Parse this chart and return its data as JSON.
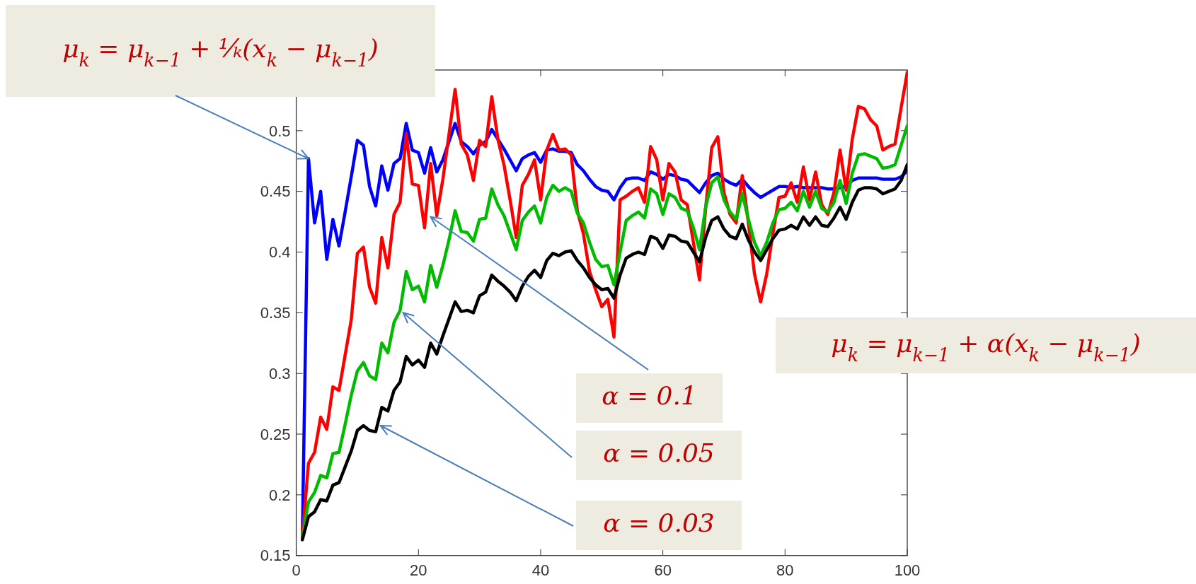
{
  "chart_data": {
    "type": "line",
    "x": [
      1,
      2,
      3,
      4,
      5,
      6,
      7,
      8,
      9,
      10,
      11,
      12,
      13,
      14,
      15,
      16,
      17,
      18,
      19,
      20,
      21,
      22,
      23,
      24,
      25,
      26,
      27,
      28,
      29,
      30,
      31,
      32,
      33,
      34,
      35,
      36,
      37,
      38,
      39,
      40,
      41,
      42,
      43,
      44,
      45,
      46,
      47,
      48,
      49,
      50,
      51,
      52,
      53,
      54,
      55,
      56,
      57,
      58,
      59,
      60,
      61,
      62,
      63,
      64,
      65,
      66,
      67,
      68,
      69,
      70,
      71,
      72,
      73,
      74,
      75,
      76,
      77,
      78,
      79,
      80,
      81,
      82,
      83,
      84,
      85,
      86,
      87,
      88,
      89,
      90,
      91,
      92,
      93,
      94,
      95,
      96,
      97,
      98,
      99,
      100
    ],
    "series": [
      {
        "color": "#0000ff",
        "values": [
          0.165,
          0.477,
          0.424,
          0.45,
          0.394,
          0.427,
          0.405,
          0.433,
          0.462,
          0.492,
          0.488,
          0.454,
          0.438,
          0.471,
          0.451,
          0.473,
          0.477,
          0.506,
          0.484,
          0.482,
          0.465,
          0.486,
          0.466,
          0.476,
          0.491,
          0.506,
          0.491,
          0.487,
          0.481,
          0.488,
          0.491,
          0.501,
          0.493,
          0.485,
          0.476,
          0.467,
          0.477,
          0.48,
          0.482,
          0.474,
          0.484,
          0.485,
          0.483,
          0.483,
          0.482,
          0.472,
          0.467,
          0.46,
          0.454,
          0.451,
          0.45,
          0.443,
          0.453,
          0.46,
          0.461,
          0.461,
          0.459,
          0.466,
          0.464,
          0.46,
          0.464,
          0.463,
          0.46,
          0.459,
          0.454,
          0.449,
          0.457,
          0.463,
          0.465,
          0.46,
          0.457,
          0.455,
          0.46,
          0.454,
          0.449,
          0.445,
          0.448,
          0.451,
          0.454,
          0.454,
          0.453,
          0.454,
          0.453,
          0.453,
          0.453,
          0.453,
          0.452,
          0.452,
          0.453,
          0.454,
          0.459,
          0.461,
          0.461,
          0.461,
          0.461,
          0.46,
          0.46,
          0.46,
          0.462,
          0.467
        ]
      },
      {
        "color": "#ff0000",
        "values": [
          0.165,
          0.226,
          0.235,
          0.264,
          0.254,
          0.289,
          0.286,
          0.315,
          0.344,
          0.399,
          0.404,
          0.371,
          0.358,
          0.412,
          0.387,
          0.431,
          0.441,
          0.497,
          0.456,
          0.455,
          0.42,
          0.473,
          0.43,
          0.46,
          0.497,
          0.534,
          0.489,
          0.48,
          0.459,
          0.492,
          0.487,
          0.528,
          0.493,
          0.472,
          0.443,
          0.412,
          0.455,
          0.464,
          0.476,
          0.443,
          0.484,
          0.497,
          0.484,
          0.485,
          0.48,
          0.434,
          0.415,
          0.384,
          0.369,
          0.355,
          0.361,
          0.33,
          0.443,
          0.446,
          0.45,
          0.453,
          0.441,
          0.487,
          0.476,
          0.443,
          0.473,
          0.466,
          0.443,
          0.439,
          0.408,
          0.377,
          0.436,
          0.486,
          0.495,
          0.449,
          0.431,
          0.424,
          0.463,
          0.424,
          0.382,
          0.359,
          0.382,
          0.415,
          0.445,
          0.446,
          0.457,
          0.441,
          0.47,
          0.443,
          0.466,
          0.439,
          0.431,
          0.449,
          0.484,
          0.451,
          0.493,
          0.52,
          0.518,
          0.509,
          0.504,
          0.484,
          0.487,
          0.489,
          0.519,
          0.548
        ]
      },
      {
        "color": "#00bb00",
        "values": [
          0.165,
          0.194,
          0.202,
          0.216,
          0.214,
          0.234,
          0.235,
          0.258,
          0.282,
          0.302,
          0.309,
          0.298,
          0.295,
          0.325,
          0.317,
          0.342,
          0.352,
          0.384,
          0.369,
          0.372,
          0.359,
          0.389,
          0.371,
          0.389,
          0.41,
          0.434,
          0.417,
          0.416,
          0.409,
          0.427,
          0.428,
          0.452,
          0.439,
          0.43,
          0.416,
          0.402,
          0.426,
          0.433,
          0.438,
          0.424,
          0.445,
          0.455,
          0.45,
          0.453,
          0.45,
          0.432,
          0.424,
          0.408,
          0.394,
          0.388,
          0.389,
          0.373,
          0.4,
          0.426,
          0.43,
          0.433,
          0.428,
          0.452,
          0.448,
          0.431,
          0.448,
          0.445,
          0.436,
          0.434,
          0.42,
          0.402,
          0.437,
          0.457,
          0.462,
          0.443,
          0.433,
          0.427,
          0.448,
          0.427,
          0.408,
          0.397,
          0.408,
          0.424,
          0.435,
          0.436,
          0.441,
          0.434,
          0.45,
          0.437,
          0.45,
          0.436,
          0.433,
          0.441,
          0.459,
          0.44,
          0.465,
          0.48,
          0.481,
          0.479,
          0.477,
          0.469,
          0.47,
          0.472,
          0.488,
          0.504
        ]
      },
      {
        "color": "#000000",
        "values": [
          0.163,
          0.182,
          0.186,
          0.196,
          0.195,
          0.208,
          0.21,
          0.223,
          0.236,
          0.253,
          0.257,
          0.253,
          0.252,
          0.272,
          0.269,
          0.286,
          0.293,
          0.314,
          0.307,
          0.311,
          0.305,
          0.325,
          0.316,
          0.331,
          0.345,
          0.359,
          0.351,
          0.352,
          0.35,
          0.364,
          0.367,
          0.381,
          0.376,
          0.372,
          0.367,
          0.36,
          0.372,
          0.38,
          0.385,
          0.379,
          0.393,
          0.399,
          0.397,
          0.4,
          0.401,
          0.393,
          0.387,
          0.379,
          0.373,
          0.369,
          0.37,
          0.362,
          0.381,
          0.395,
          0.398,
          0.4,
          0.398,
          0.413,
          0.411,
          0.403,
          0.414,
          0.413,
          0.409,
          0.408,
          0.4,
          0.392,
          0.412,
          0.426,
          0.429,
          0.419,
          0.413,
          0.411,
          0.423,
          0.41,
          0.4,
          0.393,
          0.402,
          0.411,
          0.418,
          0.419,
          0.422,
          0.419,
          0.429,
          0.422,
          0.429,
          0.422,
          0.421,
          0.428,
          0.437,
          0.427,
          0.441,
          0.451,
          0.453,
          0.453,
          0.452,
          0.448,
          0.45,
          0.452,
          0.459,
          0.472
        ]
      }
    ],
    "xlim": [
      0,
      100
    ],
    "xticks": [
      0,
      20,
      40,
      60,
      80,
      100
    ],
    "ylim": [
      0.15,
      0.55
    ],
    "yticks": [
      0.15,
      0.2,
      0.25,
      0.3,
      0.35,
      0.4,
      0.45,
      0.5
    ],
    "grid": false,
    "marker": "none",
    "line_style": "solid",
    "annotations": [
      "μ$_{k}$ = μ$_{k−1}$ + ¹⁄ₖ(x$_{k}$ − μ$_{k−1}$)",
      "μ$_{k}$ = μ$_{k−1}$ + α(x$_{k}$ − μ$_{k−1}$)",
      {
        "text": "α = 0.1",
        "x": 22,
        "y": 0.429
      },
      {
        "text": "α = 0.05",
        "x": 17.5,
        "y": 0.35
      },
      {
        "text": "α = 0.03",
        "x": 13.8,
        "y": 0.257
      }
    ]
  }
}
